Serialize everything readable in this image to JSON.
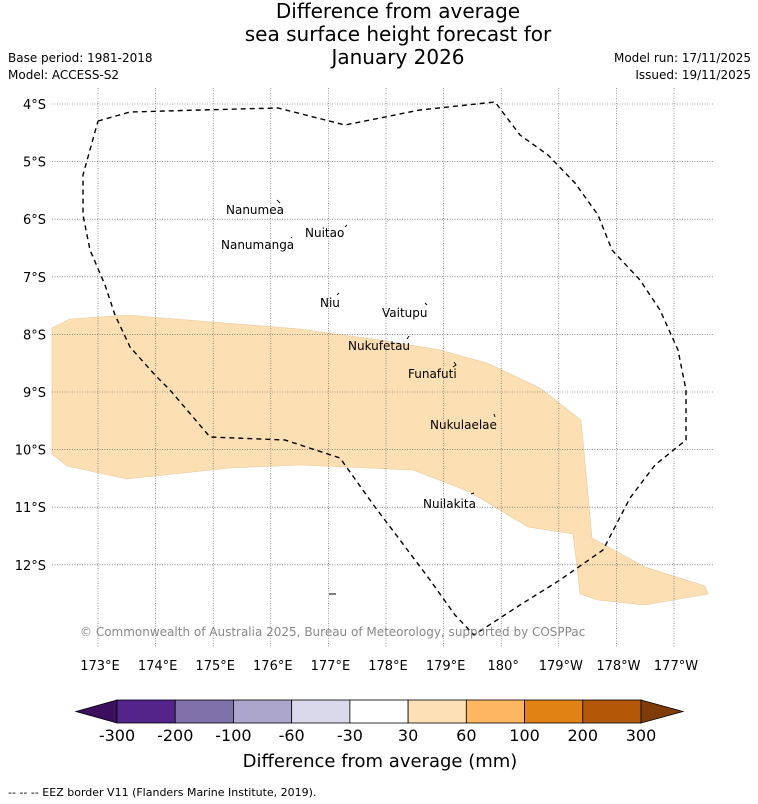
{
  "header": {
    "title_line1": "Difference from average",
    "title_line2": "sea surface height forecast for",
    "title_line3": "January 2026",
    "base_period": "Base period: 1981-2018",
    "model": "Model: ACCESS-S2",
    "model_run": "Model run: 17/11/2025",
    "issued": "Issued: 19/11/2025"
  },
  "map": {
    "lat_labels": [
      "4°S",
      "5°S",
      "6°S",
      "7°S",
      "8°S",
      "9°S",
      "10°S",
      "11°S",
      "12°S"
    ],
    "lon_labels": [
      "173°E",
      "174°E",
      "175°E",
      "176°E",
      "177°E",
      "178°E",
      "179°E",
      "180°",
      "179°W",
      "178°W",
      "177°W"
    ],
    "islands": [
      "Nanumea",
      "Nuitao",
      "Nanumanga",
      "Niu",
      "Vaitupu",
      "Nukufetau",
      "Funafuti",
      "Nukulaelae",
      "Nuilakita"
    ],
    "copyright": "© Commonwealth of Australia 2025, Bureau of Meteorology, supported by COSPPac",
    "anomaly_fill_color": "#fce0b4",
    "anomaly_category": "30 to 60 mm"
  },
  "colorbar": {
    "ticks": [
      "-300",
      "-200",
      "-100",
      "-60",
      "-30",
      "30",
      "60",
      "100",
      "200",
      "300"
    ],
    "colors": [
      "#3b0f5e",
      "#54248a",
      "#7f72aa",
      "#aca6cc",
      "#d9d9eb",
      "#ffffff",
      "#fde0b5",
      "#fdb762",
      "#e08214",
      "#b35806",
      "#7f3b08"
    ],
    "title": "Difference from average (mm)"
  },
  "footer": {
    "legend_text": "--  --  -- EEZ border V11 (Flanders Marine Institute, 2019)."
  }
}
